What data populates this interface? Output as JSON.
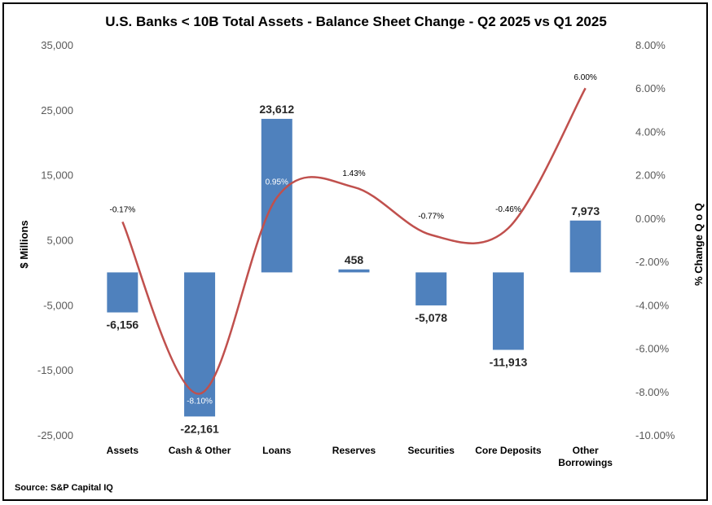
{
  "chart_data": {
    "type": "bar",
    "title": "U.S. Banks < 10B Total Assets - Balance Sheet Change - Q2 2025 vs Q1 2025",
    "ylabel": "$ Millions",
    "y2label": "% Change Q o Q",
    "source": "Source: S&P Capital IQ",
    "categories": [
      [
        "Assets"
      ],
      [
        "Cash & Other"
      ],
      [
        "Loans"
      ],
      [
        "Reserves"
      ],
      [
        "Securities"
      ],
      [
        "Core Deposits"
      ],
      [
        "Other",
        "Borrowings"
      ]
    ],
    "ylim": [
      -25000,
      35000
    ],
    "yticks": [
      35000,
      25000,
      15000,
      5000,
      -5000,
      -15000,
      -25000
    ],
    "ytick_labels": [
      "35,000",
      "25,000",
      "15,000",
      "5,000",
      "-5,000",
      "-15,000",
      "-25,000"
    ],
    "y2lim": [
      -10,
      8
    ],
    "y2ticks": [
      8,
      6,
      4,
      2,
      0,
      -2,
      -4,
      -6,
      -8,
      -10
    ],
    "y2tick_labels": [
      "8.00%",
      "6.00%",
      "4.00%",
      "2.00%",
      "0.00%",
      "-2.00%",
      "-4.00%",
      "-6.00%",
      "-8.00%",
      "-10.00%"
    ],
    "bar_color": "#4f81bd",
    "line_color": "#c0504d",
    "series": [
      {
        "type": "bar",
        "axis": "left",
        "values": [
          -6156,
          -22161,
          23612,
          458,
          -5078,
          -11913,
          7973
        ],
        "labels": [
          "-6,156",
          "-22,161",
          "23,612",
          "458",
          "-5,078",
          "-11,913",
          "7,973"
        ]
      },
      {
        "type": "line",
        "axis": "right",
        "values": [
          -0.17,
          -8.1,
          0.95,
          1.43,
          -0.77,
          -0.46,
          6.0
        ],
        "labels": [
          "-0.17%",
          "-8.10%",
          "0.95%",
          "1.43%",
          "-0.77%",
          "-0.46%",
          "6.00%"
        ]
      }
    ]
  }
}
